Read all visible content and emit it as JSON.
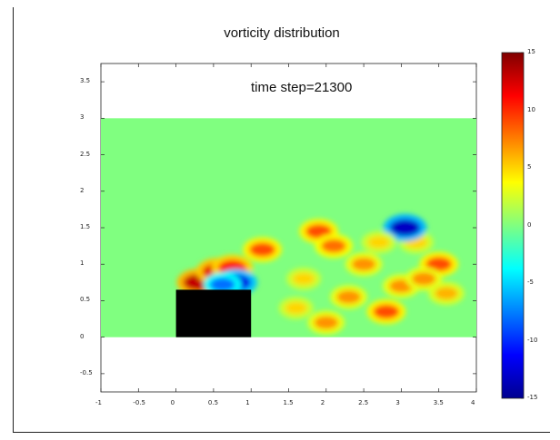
{
  "chart_data": {
    "type": "heatmap",
    "title": "vorticity distribution",
    "annotation": "time step=21300",
    "xlabel": "",
    "ylabel": "",
    "x_ticks": [
      "-1",
      "-0.5",
      "0",
      "0.5",
      "1",
      "1.5",
      "2",
      "2.5",
      "3",
      "3.5",
      "4"
    ],
    "y_ticks": [
      "3.5",
      "3",
      "2.5",
      "2",
      "1.5",
      "1",
      "0.5",
      "0",
      "-0.5"
    ],
    "xlim": [
      -1,
      4
    ],
    "ylim": [
      -0.75,
      3.75
    ],
    "field_extent": {
      "x": [
        -1,
        4
      ],
      "y": [
        0,
        3
      ]
    },
    "obstacle": {
      "x": [
        0,
        1
      ],
      "y": [
        0,
        0.65
      ],
      "color": "#000000"
    },
    "background_value": 0,
    "colorbar": {
      "ticks": [
        "15",
        "10",
        "5",
        "0",
        "-5",
        "-10",
        "-15"
      ],
      "range": [
        -15,
        15
      ],
      "colormap": "jet"
    },
    "vortices": [
      {
        "x": 0.3,
        "y": 0.75,
        "value": 13
      },
      {
        "x": 0.55,
        "y": 0.9,
        "value": 12
      },
      {
        "x": 0.75,
        "y": 0.95,
        "value": 11
      },
      {
        "x": 0.8,
        "y": 0.75,
        "value": -12
      },
      {
        "x": 0.62,
        "y": 0.72,
        "value": -8
      },
      {
        "x": 1.15,
        "y": 1.2,
        "value": 9
      },
      {
        "x": 1.9,
        "y": 1.45,
        "value": 9
      },
      {
        "x": 2.1,
        "y": 1.25,
        "value": 8
      },
      {
        "x": 2.5,
        "y": 1.0,
        "value": 7
      },
      {
        "x": 2.3,
        "y": 0.55,
        "value": 7
      },
      {
        "x": 2.0,
        "y": 0.2,
        "value": 7
      },
      {
        "x": 1.6,
        "y": 0.4,
        "value": 5
      },
      {
        "x": 2.8,
        "y": 0.35,
        "value": 9
      },
      {
        "x": 3.0,
        "y": 0.7,
        "value": 7
      },
      {
        "x": 3.5,
        "y": 1.0,
        "value": 9
      },
      {
        "x": 3.3,
        "y": 0.8,
        "value": 7
      },
      {
        "x": 3.2,
        "y": 1.3,
        "value": 5
      },
      {
        "x": 3.05,
        "y": 1.5,
        "value": -13
      },
      {
        "x": 3.6,
        "y": 0.6,
        "value": 6
      },
      {
        "x": 1.7,
        "y": 0.8,
        "value": 5
      },
      {
        "x": 2.7,
        "y": 1.3,
        "value": 5
      }
    ]
  }
}
